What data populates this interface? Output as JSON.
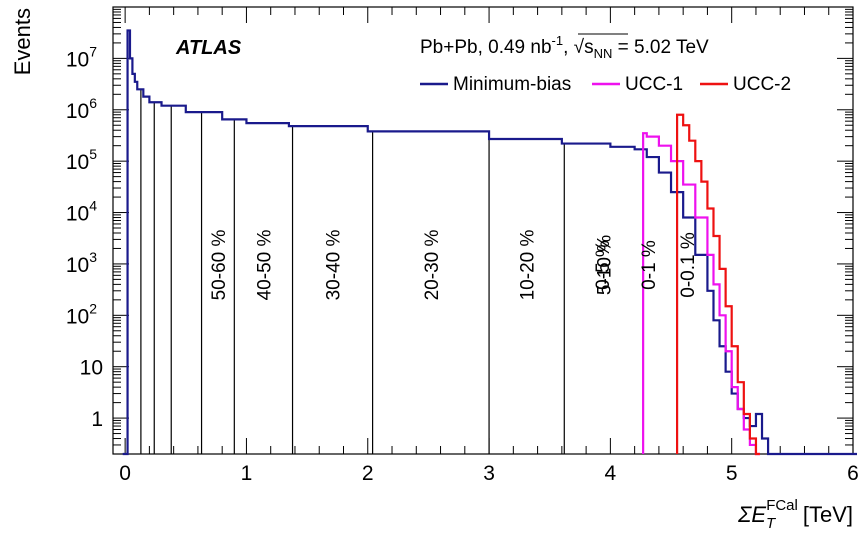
{
  "chart_data": {
    "type": "histogram",
    "ylabel": "Events",
    "xlabel_symbol": "ΣE",
    "xlabel_sub": "T",
    "xlabel_sup": "FCal",
    "xlabel_unit": "[TeV]",
    "xlim": [
      -0.1,
      6
    ],
    "ylim": [
      0.2,
      100000000
    ],
    "yscale": "log",
    "x_ticks": [
      0,
      1,
      2,
      3,
      4,
      5,
      6
    ],
    "y_ticks": [
      {
        "value": 1,
        "label": "1"
      },
      {
        "value": 10,
        "label": "10"
      },
      {
        "value": 100,
        "label": "10",
        "exp": "2"
      },
      {
        "value": 1000,
        "label": "10",
        "exp": "3"
      },
      {
        "value": 10000,
        "label": "10",
        "exp": "4"
      },
      {
        "value": 100000,
        "label": "10",
        "exp": "5"
      },
      {
        "value": 1000000,
        "label": "10",
        "exp": "6"
      },
      {
        "value": 10000000,
        "label": "10",
        "exp": "7"
      }
    ],
    "experiment_label": "ATLAS",
    "info_label": {
      "system": "Pb+Pb, 0.49 nb",
      "lumi_exp": "-1",
      "sep": ", ",
      "sqrt_sym": "√",
      "s": "s",
      "s_sub": "NN",
      "energy": " = 5.02 TeV"
    },
    "legend_position": "top-right",
    "series": [
      {
        "name": "Minimum-bias",
        "color": "#1a1a8c",
        "x": [
          -0.02,
          0.02,
          0.04,
          0.06,
          0.08,
          0.1,
          0.15,
          0.2,
          0.3,
          0.5,
          0.8,
          1.0,
          1.35,
          2.0,
          3.0,
          3.6,
          4.0,
          4.2,
          4.3,
          4.4,
          4.5,
          4.6,
          4.7,
          4.8,
          4.85,
          4.9,
          4.95,
          5.0,
          5.05,
          5.1,
          5.15,
          5.2,
          5.25,
          5.3,
          6.0
        ],
        "y": [
          0.2,
          35000000,
          10000000,
          5000000,
          3500000,
          2500000,
          1800000,
          1400000,
          1200000,
          900000,
          650000,
          550000,
          480000,
          380000,
          270000,
          220000,
          190000,
          170000,
          120000,
          60000,
          25000,
          8000,
          1500,
          300,
          80,
          25,
          8,
          3,
          1.5,
          1,
          0.7,
          1.2,
          0.4,
          0.2,
          0.2
        ]
      },
      {
        "name": "UCC-1",
        "color": "#ee11ee",
        "x": [
          4.27,
          4.3,
          4.4,
          4.5,
          4.6,
          4.7,
          4.8,
          4.85,
          4.9,
          4.95,
          5.0,
          5.05,
          5.1,
          5.15,
          5.2
        ],
        "y": [
          350000,
          300000,
          200000,
          100000,
          35000,
          8000,
          1500,
          400,
          100,
          20,
          4,
          1.5,
          0.6,
          0.3,
          0.2
        ]
      },
      {
        "name": "UCC-2",
        "color": "#ee1111",
        "x": [
          4.55,
          4.6,
          4.65,
          4.7,
          4.75,
          4.8,
          4.85,
          4.9,
          4.95,
          5.0,
          5.05,
          5.1,
          5.15,
          5.2
        ],
        "y": [
          800000,
          500000,
          250000,
          100000,
          40000,
          12000,
          3500,
          800,
          150,
          25,
          5,
          1.2,
          0.4,
          0.2
        ]
      }
    ],
    "centrality_bins": [
      {
        "x": 0.13,
        "label": null,
        "color": "#000000"
      },
      {
        "x": 0.24,
        "label": null,
        "color": "#000000"
      },
      {
        "x": 0.38,
        "label": null,
        "color": "#000000"
      },
      {
        "x": 0.63,
        "label": "50-60 %",
        "color": "#000000"
      },
      {
        "x": 0.9,
        "label": "40-50 %",
        "color": "#000000"
      },
      {
        "x": 1.38,
        "label": "30-40 %",
        "color": "#000000"
      },
      {
        "x": 2.04,
        "label": "20-30 %",
        "color": "#000000"
      },
      {
        "x": 3.0,
        "label": "10-20 %",
        "color": "#000000"
      },
      {
        "x": 3.62,
        "label": "5-10 %",
        "color": "#000000"
      },
      {
        "x": 4.27,
        "label": "0-5 %",
        "color": "#000000"
      },
      {
        "x": 4.55,
        "label": "0-1 %",
        "color": "#ee11ee"
      },
      {
        "x": null,
        "label": "0-0.1 %",
        "color": "#ee1111"
      }
    ]
  }
}
